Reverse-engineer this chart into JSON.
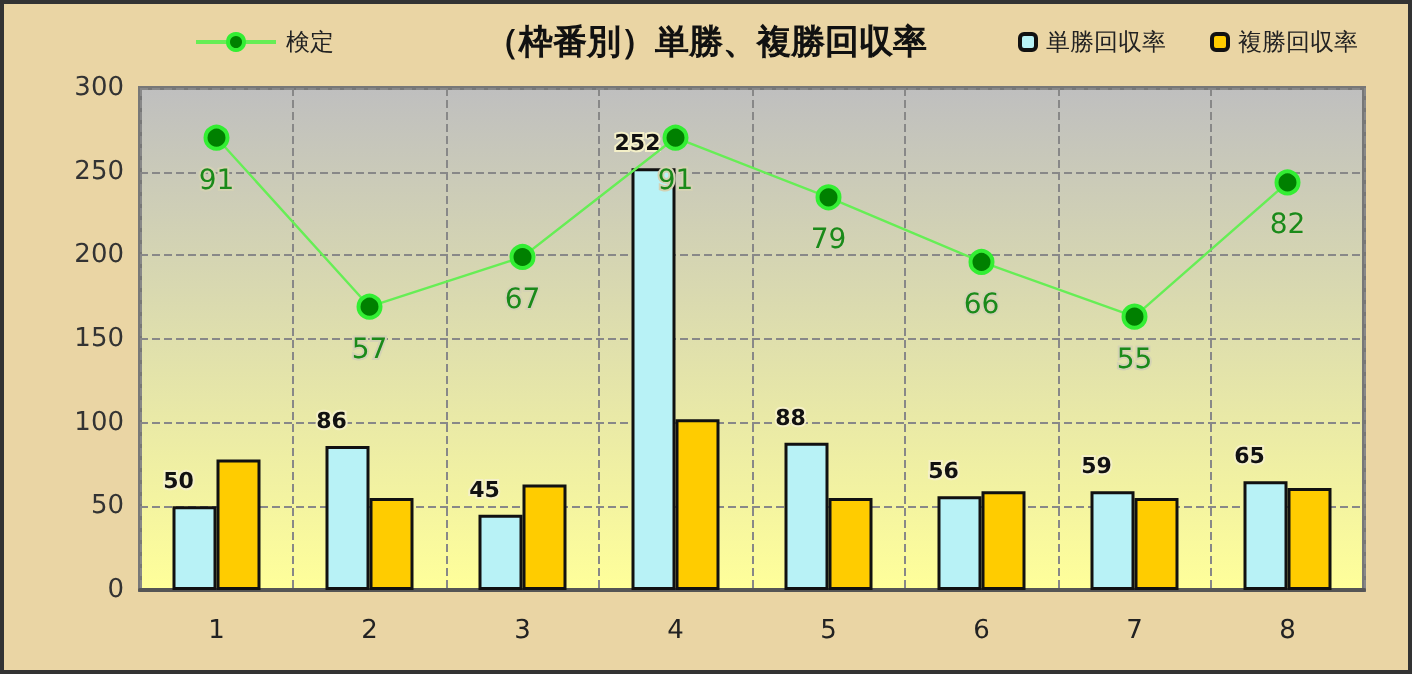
{
  "chart_data": {
    "type": "bar",
    "title": "（枠番別）単勝、複勝回収率",
    "categories": [
      "1",
      "2",
      "3",
      "4",
      "5",
      "6",
      "7",
      "8"
    ],
    "series": [
      {
        "name": "単勝回収率",
        "color": "#b8f2f6",
        "values": [
          50,
          86,
          45,
          252,
          88,
          56,
          59,
          65
        ],
        "value_labels": [
          "50",
          "86",
          "45",
          "252",
          "88",
          "56",
          "59",
          "65"
        ]
      },
      {
        "name": "複勝回収率",
        "color": "#ffcc00",
        "values": [
          78,
          55,
          63,
          102,
          55,
          59,
          55,
          61
        ]
      },
      {
        "name": "検定",
        "type": "line",
        "axis": "y2",
        "color": "#008000",
        "values": [
          91,
          57,
          67,
          91,
          79,
          66,
          55,
          82
        ],
        "value_labels": [
          "91",
          "57",
          "67",
          "91",
          "79",
          "66",
          "55",
          "82"
        ]
      }
    ],
    "ylim": [
      0,
      300
    ],
    "yticks": [
      0,
      50,
      100,
      150,
      200,
      250,
      300
    ],
    "y2lim": [
      0,
      101
    ],
    "grid": true,
    "legend": "top",
    "marker": "circle",
    "line_style": "solid"
  }
}
